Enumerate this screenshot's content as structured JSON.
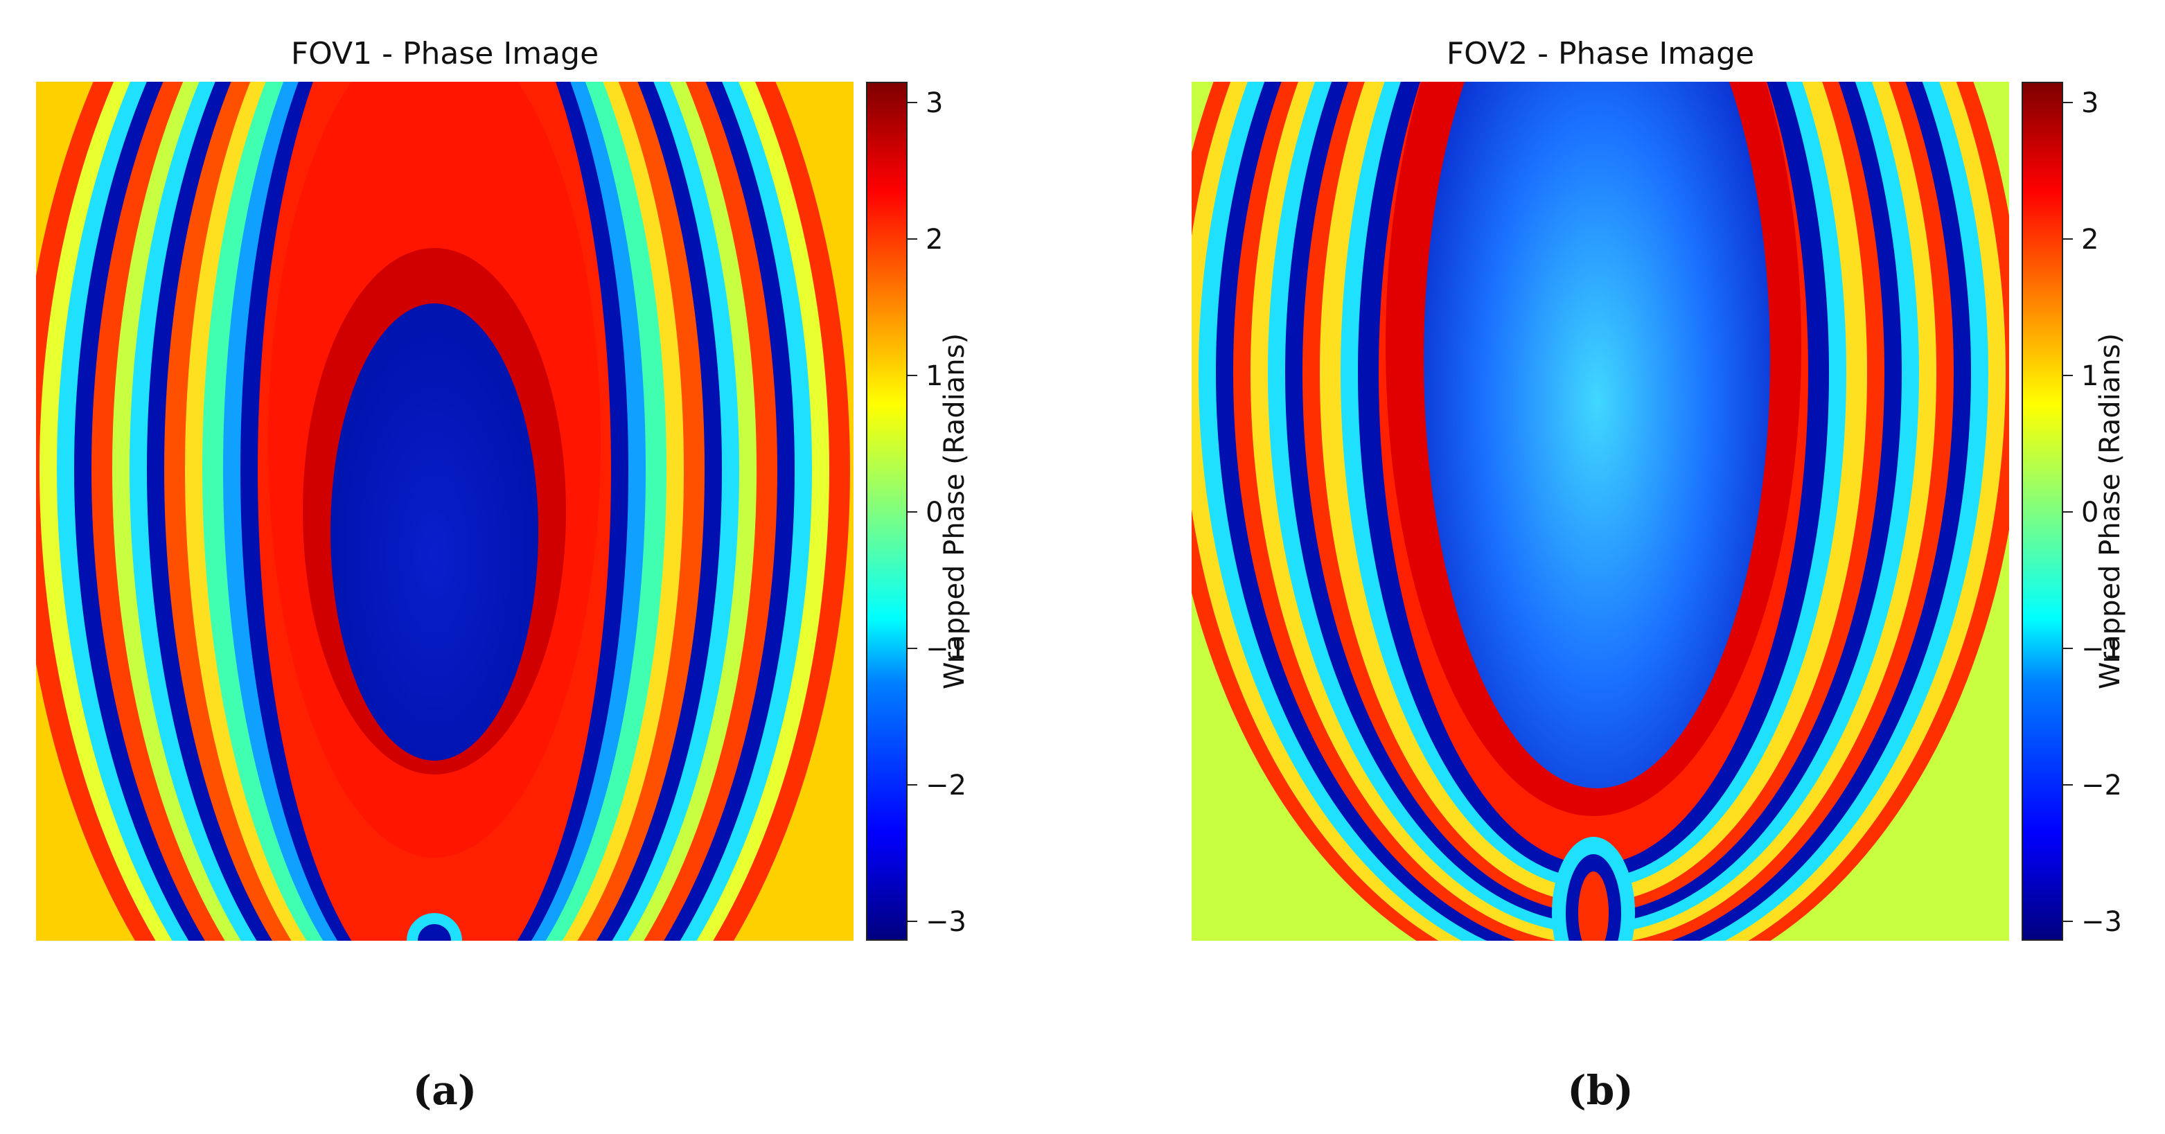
{
  "chart_data": [
    {
      "type": "heatmap",
      "title": "FOV1 - Phase Image",
      "colorbar": {
        "label": "Wrapped Phase (Radians)",
        "ticks": [
          "3",
          "2",
          "1",
          "0",
          "−1",
          "−2",
          "−3"
        ],
        "range": [
          -3.14159,
          3.14159
        ],
        "colormap": "jet"
      },
      "caption": "(a)"
    },
    {
      "type": "heatmap",
      "title": "FOV2 - Phase Image",
      "colorbar": {
        "label": "Wrapped Phase (Radians)",
        "ticks": [
          "3",
          "2",
          "1",
          "0",
          "−1",
          "−2",
          "−3"
        ],
        "range": [
          -3.14159,
          3.14159
        ],
        "colormap": "jet"
      },
      "caption": "(b)"
    }
  ],
  "colors": {
    "dark_blue": "#00007f",
    "blue": "#0000ff",
    "cyan": "#00ffff",
    "green": "#7fff7f",
    "yellow": "#ffff00",
    "orange": "#ff7f00",
    "red": "#ff0000",
    "dark_red": "#7f0000"
  }
}
